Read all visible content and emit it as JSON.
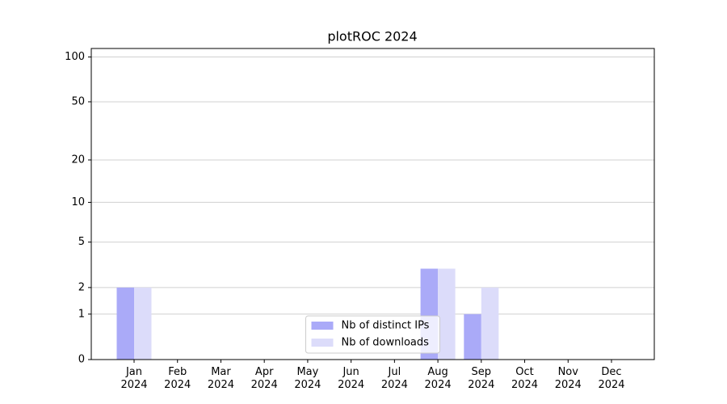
{
  "chart_data": {
    "type": "bar",
    "title": "plotROC 2024",
    "categories": [
      "Jan 2024",
      "Feb 2024",
      "Mar 2024",
      "Apr 2024",
      "May 2024",
      "Jun 2024",
      "Jul 2024",
      "Aug 2024",
      "Sep 2024",
      "Oct 2024",
      "Nov 2024",
      "Dec 2024"
    ],
    "series": [
      {
        "name": "Nb of distinct IPs",
        "color": "#aaaaf8",
        "values": [
          2,
          0,
          0,
          0,
          0,
          0,
          0,
          3,
          1,
          0,
          0,
          0
        ]
      },
      {
        "name": "Nb of downloads",
        "color": "#dcdcfa",
        "values": [
          2,
          0,
          0,
          0,
          0,
          0,
          0,
          3,
          2,
          0,
          0,
          0
        ]
      }
    ],
    "yscale": "log1p",
    "ylim": [
      0,
      114
    ],
    "yticks": [
      0,
      1,
      2,
      5,
      10,
      20,
      50,
      100
    ],
    "grid": true,
    "legend": "lower center"
  }
}
